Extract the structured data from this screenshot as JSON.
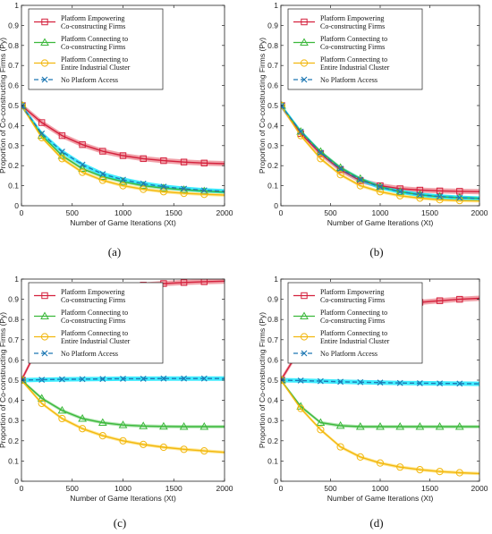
{
  "figure": {
    "x_axis_label": "Number of Game Iterations (Xt)",
    "y_axis_label": "Proportion of Co-constructing Firms (Py)",
    "legend": [
      {
        "key": "empowering",
        "lines": [
          "Platform Empowering",
          "Co-constructing Firms"
        ],
        "color": "#d4213d",
        "marker": "square-icon",
        "dash": "solid"
      },
      {
        "key": "connect_firms",
        "lines": [
          "Platform Connecting to",
          "Co-constructing Firms"
        ],
        "color": "#3cb83c",
        "marker": "triangle-icon",
        "dash": "solid"
      },
      {
        "key": "connect_cluster",
        "lines": [
          "Platform Connecting to",
          "Entire Industrial Cluster"
        ],
        "color": "#f2b70f",
        "marker": "circle-icon",
        "dash": "solid"
      },
      {
        "key": "no_access",
        "lines": [
          "No Platform Access"
        ],
        "color": "#1f78b4",
        "marker": "x-icon",
        "dash": "dashed",
        "band_color": "#00e5ff"
      }
    ],
    "band_color_empowering": "#ee8a93",
    "band_color_connect_firms": "#99dd99",
    "band_color_connect_cluster": "#ffe27a"
  },
  "chart_data": [
    {
      "type": "line",
      "panel_label": "(a)",
      "xlim": [
        0,
        2000
      ],
      "ylim": [
        0,
        1
      ],
      "x_ticks": [
        "0",
        "500",
        "1000",
        "1500",
        "2000"
      ],
      "y_ticks": [
        "0",
        "0.1",
        "0.2",
        "0.3",
        "0.4",
        "0.5",
        "0.6",
        "0.7",
        "0.8",
        "0.9",
        "1"
      ],
      "x": [
        0,
        200,
        400,
        600,
        800,
        1000,
        1200,
        1400,
        1600,
        1800,
        2000
      ],
      "series": [
        {
          "key": "empowering",
          "values": [
            0.5,
            0.415,
            0.35,
            0.305,
            0.272,
            0.25,
            0.235,
            0.225,
            0.218,
            0.213,
            0.21
          ]
        },
        {
          "key": "connect_firms",
          "values": [
            0.5,
            0.35,
            0.25,
            0.185,
            0.145,
            0.12,
            0.1,
            0.088,
            0.08,
            0.073,
            0.068
          ]
        },
        {
          "key": "connect_cluster",
          "values": [
            0.5,
            0.34,
            0.235,
            0.167,
            0.127,
            0.1,
            0.082,
            0.07,
            0.062,
            0.057,
            0.053
          ]
        },
        {
          "key": "no_access",
          "values": [
            0.5,
            0.36,
            0.27,
            0.205,
            0.158,
            0.13,
            0.11,
            0.095,
            0.085,
            0.077,
            0.072
          ]
        }
      ]
    },
    {
      "type": "line",
      "panel_label": "(b)",
      "xlim": [
        0,
        2000
      ],
      "ylim": [
        0,
        1
      ],
      "x_ticks": [
        "0",
        "500",
        "1000",
        "1500",
        "2000"
      ],
      "y_ticks": [
        "0",
        "0.1",
        "0.2",
        "0.3",
        "0.4",
        "0.5",
        "0.6",
        "0.7",
        "0.8",
        "0.9",
        "1"
      ],
      "x": [
        0,
        200,
        400,
        600,
        800,
        1000,
        1200,
        1400,
        1600,
        1800,
        2000
      ],
      "series": [
        {
          "key": "empowering",
          "values": [
            0.5,
            0.36,
            0.26,
            0.18,
            0.125,
            0.1,
            0.085,
            0.078,
            0.074,
            0.072,
            0.07
          ]
        },
        {
          "key": "connect_firms",
          "values": [
            0.5,
            0.37,
            0.27,
            0.19,
            0.135,
            0.095,
            0.07,
            0.055,
            0.045,
            0.04,
            0.037
          ]
        },
        {
          "key": "connect_cluster",
          "values": [
            0.5,
            0.35,
            0.235,
            0.155,
            0.1,
            0.07,
            0.05,
            0.038,
            0.03,
            0.026,
            0.024
          ]
        },
        {
          "key": "no_access",
          "values": [
            0.5,
            0.37,
            0.265,
            0.185,
            0.13,
            0.093,
            0.07,
            0.055,
            0.046,
            0.04,
            0.036
          ]
        }
      ]
    },
    {
      "type": "line",
      "panel_label": "(c)",
      "xlim": [
        0,
        2000
      ],
      "ylim": [
        0,
        1
      ],
      "x_ticks": [
        "0",
        "500",
        "1000",
        "1500",
        "2000"
      ],
      "y_ticks": [
        "0",
        "0.1",
        "0.2",
        "0.3",
        "0.4",
        "0.5",
        "0.6",
        "0.7",
        "0.8",
        "0.9",
        "1"
      ],
      "x": [
        0,
        200,
        400,
        600,
        800,
        1000,
        1200,
        1400,
        1600,
        1800,
        2000
      ],
      "series": [
        {
          "key": "empowering",
          "values": [
            0.5,
            0.7,
            0.82,
            0.89,
            0.93,
            0.955,
            0.97,
            0.978,
            0.983,
            0.987,
            0.99
          ]
        },
        {
          "key": "connect_firms",
          "values": [
            0.5,
            0.41,
            0.35,
            0.31,
            0.29,
            0.278,
            0.273,
            0.271,
            0.27,
            0.27,
            0.27
          ]
        },
        {
          "key": "connect_cluster",
          "values": [
            0.5,
            0.385,
            0.31,
            0.26,
            0.225,
            0.2,
            0.182,
            0.168,
            0.158,
            0.15,
            0.143
          ]
        },
        {
          "key": "no_access",
          "values": [
            0.5,
            0.502,
            0.504,
            0.505,
            0.506,
            0.507,
            0.507,
            0.508,
            0.508,
            0.508,
            0.508
          ]
        }
      ]
    },
    {
      "type": "line",
      "panel_label": "(d)",
      "xlim": [
        0,
        2000
      ],
      "ylim": [
        0,
        1
      ],
      "x_ticks": [
        "0",
        "500",
        "1000",
        "1500",
        "2000"
      ],
      "y_ticks": [
        "0",
        "0.1",
        "0.2",
        "0.3",
        "0.4",
        "0.5",
        "0.6",
        "0.7",
        "0.8",
        "0.9",
        "1"
      ],
      "x": [
        0,
        200,
        400,
        600,
        800,
        1000,
        1200,
        1400,
        1600,
        1800,
        2000
      ],
      "series": [
        {
          "key": "empowering",
          "values": [
            0.5,
            0.66,
            0.75,
            0.8,
            0.835,
            0.858,
            0.873,
            0.885,
            0.893,
            0.9,
            0.905
          ]
        },
        {
          "key": "connect_firms",
          "values": [
            0.5,
            0.37,
            0.29,
            0.275,
            0.27,
            0.27,
            0.27,
            0.27,
            0.27,
            0.27,
            0.27
          ]
        },
        {
          "key": "connect_cluster",
          "values": [
            0.5,
            0.36,
            0.255,
            0.17,
            0.12,
            0.09,
            0.07,
            0.057,
            0.048,
            0.042,
            0.038
          ]
        },
        {
          "key": "no_access",
          "values": [
            0.5,
            0.498,
            0.495,
            0.492,
            0.49,
            0.488,
            0.486,
            0.485,
            0.484,
            0.483,
            0.482
          ]
        }
      ]
    }
  ]
}
